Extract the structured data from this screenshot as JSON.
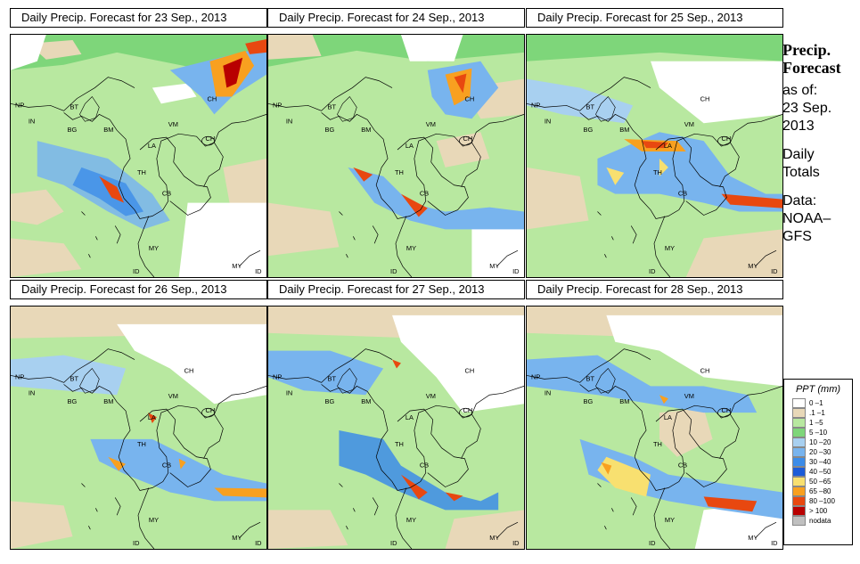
{
  "panels": [
    {
      "title": "Daily Precip. Forecast for  23 Sep., 2013"
    },
    {
      "title": "Daily Precip. Forecast for  24 Sep., 2013"
    },
    {
      "title": "Daily Precip. Forecast for  25 Sep., 2013"
    },
    {
      "title": "Daily Precip. Forecast for  26 Sep., 2013"
    },
    {
      "title": "Daily Precip. Forecast for  27 Sep., 2013"
    },
    {
      "title": "Daily Precip. Forecast for  28 Sep., 2013"
    }
  ],
  "country_labels": [
    "NP",
    "BT",
    "BG",
    "IN",
    "CH",
    "BM",
    "VM",
    "LA",
    "TH",
    "CB",
    "CH",
    "MY",
    "ID",
    "MY",
    "ID"
  ],
  "side": {
    "title_line1": "Precip.",
    "title_line2": "Forecast",
    "asof_line1": "as of:",
    "asof_line2": "23 Sep.",
    "asof_line3": "2013",
    "daily_line1": "Daily",
    "daily_line2": "Totals",
    "data_line1": "Data:",
    "data_line2": "NOAA–",
    "data_line3": "GFS"
  },
  "legend": {
    "title": "PPT (mm)",
    "items": [
      {
        "label": "0 –1",
        "color": "#ffffff"
      },
      {
        "label": ".1 –1",
        "color": "#e8d8b8"
      },
      {
        "label": "1 –5",
        "color": "#b8e8a0"
      },
      {
        "label": "5 –10",
        "color": "#7ed67a"
      },
      {
        "label": "10 –20",
        "color": "#a8d0f0"
      },
      {
        "label": "20 –30",
        "color": "#78b4ee"
      },
      {
        "label": "30 –40",
        "color": "#3c8ce8"
      },
      {
        "label": "40 –50",
        "color": "#1c5cd8"
      },
      {
        "label": "50 –65",
        "color": "#f8e070"
      },
      {
        "label": "65 –80",
        "color": "#f8a020"
      },
      {
        "label": "80 –100",
        "color": "#e84810"
      },
      {
        "label": "> 100",
        "color": "#b80000"
      },
      {
        "label": "nodata",
        "color": "#c0c0c0"
      }
    ]
  }
}
